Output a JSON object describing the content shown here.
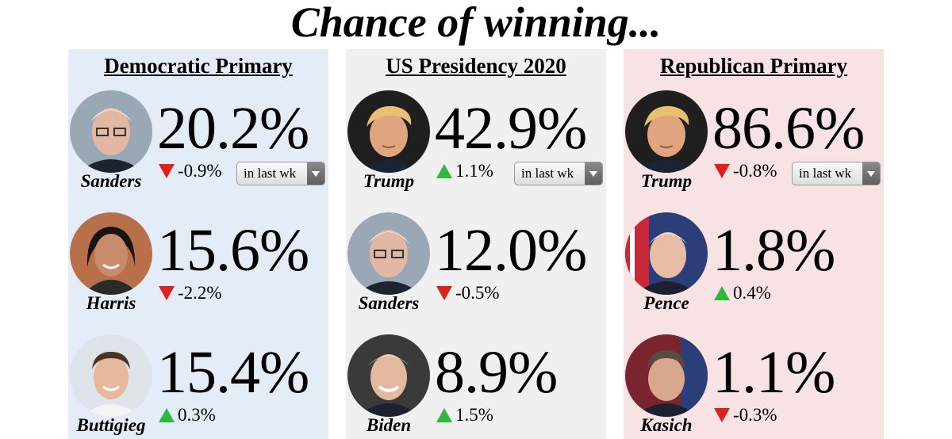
{
  "title": "Chance of winning...",
  "panels": [
    {
      "title": "Democratic Primary",
      "bg": "#e3ecf7",
      "period": "in last wk",
      "candidates": [
        {
          "name": "Sanders",
          "pct": "20.2%",
          "change": "-0.9%",
          "dir": "down"
        },
        {
          "name": "Harris",
          "pct": "15.6%",
          "change": "-2.2%",
          "dir": "down"
        },
        {
          "name": "Buttigieg",
          "pct": "15.4%",
          "change": "0.3%",
          "dir": "up"
        }
      ]
    },
    {
      "title": "US Presidency 2020",
      "bg": "#f0f0f0",
      "period": "in last wk",
      "candidates": [
        {
          "name": "Trump",
          "pct": "42.9%",
          "change": "1.1%",
          "dir": "up"
        },
        {
          "name": "Sanders",
          "pct": "12.0%",
          "change": "-0.5%",
          "dir": "down"
        },
        {
          "name": "Biden",
          "pct": "8.9%",
          "change": "1.5%",
          "dir": "up"
        }
      ]
    },
    {
      "title": "Republican Primary",
      "bg": "#f7e3e3",
      "period": "in last wk",
      "candidates": [
        {
          "name": "Trump",
          "pct": "86.6%",
          "change": "-0.8%",
          "dir": "down"
        },
        {
          "name": "Pence",
          "pct": "1.8%",
          "change": "0.4%",
          "dir": "up"
        },
        {
          "name": "Kasich",
          "pct": "1.1%",
          "change": "-0.3%",
          "dir": "down"
        }
      ]
    }
  ],
  "colors": {
    "down": "#e0201b",
    "up": "#2eb83c"
  }
}
